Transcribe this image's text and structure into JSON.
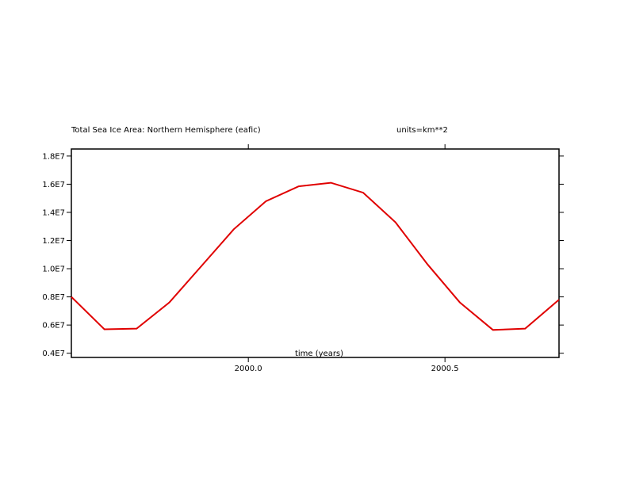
{
  "chart_data": {
    "type": "line",
    "title": "Total Sea Ice Area: Northern Hemisphere (eafic)",
    "units_label": "units=km**2",
    "xlabel": "time (years)",
    "ylabel": "",
    "xlim": [
      1999.55,
      2000.79
    ],
    "ylim": [
      3700000.0,
      18500000.0
    ],
    "x_ticks": [
      2000.0,
      2000.5
    ],
    "x_tick_labels": [
      "2000.0",
      "2000.5"
    ],
    "y_ticks": [
      4000000,
      6000000,
      8000000,
      10000000,
      12000000,
      14000000,
      16000000,
      18000000
    ],
    "y_tick_labels": [
      "0.4E7",
      "0.6E7",
      "0.8E7",
      "1.0E7",
      "1.2E7",
      "1.4E7",
      "1.6E7",
      "1.8E7"
    ],
    "grid": false,
    "series": [
      {
        "color": "#e00000",
        "x": [
          1999.55,
          1999.634,
          1999.716,
          1999.799,
          1999.881,
          1999.963,
          2000.045,
          2000.128,
          2000.21,
          2000.292,
          2000.374,
          2000.456,
          2000.538,
          2000.622,
          2000.704,
          2000.79
        ],
        "y": [
          8000000,
          5700000,
          5750000,
          7600000,
          10200000,
          12800000,
          14800000,
          15850000,
          16100000,
          15400000,
          13300000,
          10300000,
          7600000,
          5650000,
          5750000,
          7800000
        ]
      }
    ]
  }
}
